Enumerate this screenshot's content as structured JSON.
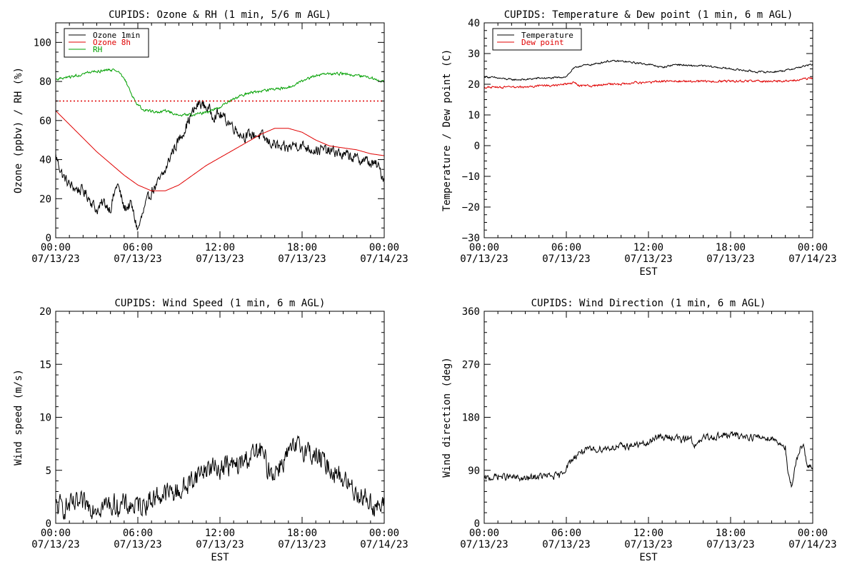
{
  "chart_data": [
    {
      "id": "ozone-rh",
      "type": "line",
      "title": "CUPIDS: Ozone & RH (1 min, 5/6 m AGL)",
      "xlabel": "",
      "ylabel": "Ozone (ppbv) / RH (%)",
      "x_unit": "hours since 07/13/23 00:00 EST",
      "xlim": [
        0,
        24
      ],
      "ylim": [
        0,
        110
      ],
      "x_ticks": [
        0,
        6,
        12,
        18,
        24
      ],
      "x_tick_labels": [
        [
          "00:00",
          "07/13/23"
        ],
        [
          "06:00",
          "07/13/23"
        ],
        [
          "12:00",
          "07/13/23"
        ],
        [
          "18:00",
          "07/13/23"
        ],
        [
          "00:00",
          "07/14/23"
        ]
      ],
      "y_ticks": [
        0,
        20,
        40,
        60,
        80,
        100
      ],
      "y_tick_labels": [
        "0",
        "20",
        "40",
        "60",
        "80",
        "100"
      ],
      "y_minor_step": 5,
      "legend_position": "top-left",
      "reference_lines": [
        {
          "y": 70,
          "color": "#e00000",
          "style": "dotted"
        }
      ],
      "series": [
        {
          "name": "Ozone 1min",
          "color": "#000000",
          "noise": 2.5,
          "x": [
            0,
            0.5,
            1,
            1.5,
            2,
            2.5,
            3,
            3.5,
            4,
            4.5,
            5,
            5.5,
            6,
            6.5,
            7,
            7.5,
            8,
            8.5,
            9,
            9.5,
            10,
            10.5,
            11,
            11.5,
            12,
            12.5,
            13,
            13.5,
            14,
            14.5,
            15,
            15.5,
            16,
            16.5,
            17,
            17.5,
            18,
            18.5,
            19,
            19.5,
            20,
            20.5,
            21,
            21.5,
            22,
            22.5,
            23,
            23.5,
            24
          ],
          "y": [
            42,
            32,
            27,
            25,
            24,
            20,
            14,
            18,
            15,
            28,
            15,
            17,
            4,
            15,
            24,
            28,
            34,
            44,
            50,
            57,
            64,
            69,
            67,
            63,
            63,
            60,
            57,
            53,
            52,
            53,
            52,
            49,
            48,
            45,
            46,
            48,
            47,
            46,
            45,
            45,
            44,
            44,
            42,
            42,
            40,
            40,
            38,
            37,
            30
          ]
        },
        {
          "name": "Ozone 8h",
          "color": "#e00000",
          "noise": 0,
          "x": [
            0,
            1,
            2,
            3,
            4,
            5,
            6,
            7,
            8,
            9,
            10,
            11,
            12,
            13,
            14,
            15,
            16,
            17,
            18,
            19,
            20,
            21,
            22,
            23,
            24
          ],
          "y": [
            65,
            58,
            51,
            44,
            38,
            32,
            27,
            24,
            24,
            27,
            32,
            37,
            41,
            45,
            49,
            53,
            56,
            56,
            54,
            50,
            47,
            46,
            45,
            43,
            42
          ]
        },
        {
          "name": "RH",
          "color": "#00a000",
          "noise": 0.6,
          "x": [
            0,
            1,
            2,
            3,
            4,
            4.5,
            5,
            5.5,
            6,
            6.5,
            7,
            7.5,
            8,
            9,
            10,
            11,
            12,
            13,
            14,
            15,
            16,
            17,
            18,
            19,
            20,
            21,
            22,
            23,
            24
          ],
          "y": [
            81,
            82,
            84,
            85,
            86,
            85,
            82,
            74,
            68,
            65,
            65,
            64,
            65,
            63,
            63,
            64,
            67,
            71,
            74,
            75,
            76,
            77,
            80,
            83,
            84,
            84,
            83,
            82,
            80
          ]
        }
      ]
    },
    {
      "id": "temp-dew",
      "type": "line",
      "title": "CUPIDS: Temperature & Dew point (1 min, 6 m AGL)",
      "xlabel": "EST",
      "ylabel": "Temperature / Dew point (C)",
      "x_unit": "hours since 07/13/23 00:00 EST",
      "xlim": [
        0,
        24
      ],
      "ylim": [
        -30,
        40
      ],
      "x_ticks": [
        0,
        6,
        12,
        18,
        24
      ],
      "x_tick_labels": [
        [
          "00:00",
          "07/13/23"
        ],
        [
          "06:00",
          "07/13/23"
        ],
        [
          "12:00",
          "07/13/23"
        ],
        [
          "18:00",
          "07/13/23"
        ],
        [
          "00:00",
          "07/14/23"
        ]
      ],
      "y_ticks": [
        -30,
        -20,
        -10,
        0,
        10,
        20,
        30,
        40
      ],
      "y_tick_labels": [
        "−30",
        "−20",
        "−10",
        "0",
        "10",
        "20",
        "30",
        "40"
      ],
      "y_minor_step": 2.5,
      "legend_position": "top-left",
      "reference_lines": [],
      "series": [
        {
          "name": "Temperature",
          "color": "#000000",
          "noise": 0.25,
          "x": [
            0,
            1,
            2,
            3,
            4,
            5,
            6,
            6.5,
            7,
            8,
            9,
            10,
            11,
            12,
            13,
            14,
            15,
            16,
            17,
            18,
            19,
            20,
            21,
            22,
            23,
            24
          ],
          "y": [
            22.5,
            22,
            21.5,
            21.5,
            22,
            22,
            22.5,
            25,
            26,
            26.5,
            27.5,
            27.5,
            27,
            26.5,
            25.5,
            26.5,
            26,
            26,
            25.5,
            25,
            24.5,
            24,
            24,
            24.5,
            25.5,
            26.5
          ]
        },
        {
          "name": "Dew point",
          "color": "#e00000",
          "noise": 0.3,
          "x": [
            0,
            1,
            2,
            3,
            4,
            5,
            6,
            6.5,
            7,
            8,
            9,
            10,
            11,
            12,
            13,
            14,
            15,
            16,
            17,
            18,
            19,
            20,
            21,
            22,
            23,
            24
          ],
          "y": [
            19,
            19,
            19,
            19,
            19.5,
            19.5,
            20,
            20.5,
            19.5,
            19.5,
            20,
            20,
            20.5,
            20.5,
            21,
            21,
            21,
            21,
            21,
            21,
            21,
            21,
            21,
            21,
            21.5,
            22
          ]
        }
      ]
    },
    {
      "id": "wind-speed",
      "type": "line",
      "title": "CUPIDS: Wind Speed (1 min, 6 m AGL)",
      "xlabel": "EST",
      "ylabel": "Wind speed (m/s)",
      "x_unit": "hours since 07/13/23 00:00 EST",
      "xlim": [
        0,
        24
      ],
      "ylim": [
        0,
        20
      ],
      "x_ticks": [
        0,
        6,
        12,
        18,
        24
      ],
      "x_tick_labels": [
        [
          "00:00",
          "07/13/23"
        ],
        [
          "06:00",
          "07/13/23"
        ],
        [
          "12:00",
          "07/13/23"
        ],
        [
          "18:00",
          "07/13/23"
        ],
        [
          "00:00",
          "07/14/23"
        ]
      ],
      "y_ticks": [
        0,
        5,
        10,
        15,
        20
      ],
      "y_tick_labels": [
        "0",
        "5",
        "10",
        "15",
        "20"
      ],
      "y_minor_step": 1,
      "legend_position": "none",
      "reference_lines": [],
      "series": [
        {
          "name": "",
          "color": "#000000",
          "noise": 0.9,
          "x": [
            0,
            1,
            2,
            3,
            4,
            5,
            6,
            7,
            7.5,
            8,
            8.5,
            9,
            9.5,
            10,
            10.5,
            11,
            11.5,
            12,
            12.5,
            13,
            13.5,
            14,
            14.5,
            15,
            15.5,
            16,
            16.5,
            17,
            17.5,
            18,
            18.5,
            19,
            19.5,
            20,
            20.5,
            21,
            21.5,
            22,
            22.5,
            23,
            23.5,
            24
          ],
          "y": [
            1.5,
            1.6,
            1.7,
            1.7,
            1.7,
            1.7,
            1.6,
            2.3,
            2.6,
            2.8,
            2.9,
            3.0,
            3.4,
            4.2,
            4.8,
            5.2,
            5.2,
            5.3,
            5.5,
            5.3,
            5.5,
            6.2,
            6.5,
            6.8,
            5.2,
            4.8,
            5.8,
            6.5,
            7.0,
            7.2,
            6.8,
            6.3,
            5.8,
            5.3,
            4.8,
            4.2,
            3.5,
            3.0,
            2.5,
            2.0,
            1.5,
            1.5
          ]
        }
      ]
    },
    {
      "id": "wind-dir",
      "type": "line",
      "title": "CUPIDS: Wind Direction (1 min, 6 m AGL)",
      "xlabel": "EST",
      "ylabel": "Wind direction (deg)",
      "x_unit": "hours since 07/13/23 00:00 EST",
      "xlim": [
        0,
        24
      ],
      "ylim": [
        0,
        360
      ],
      "x_ticks": [
        0,
        6,
        12,
        18,
        24
      ],
      "x_tick_labels": [
        [
          "00:00",
          "07/13/23"
        ],
        [
          "06:00",
          "07/13/23"
        ],
        [
          "12:00",
          "07/13/23"
        ],
        [
          "18:00",
          "07/13/23"
        ],
        [
          "00:00",
          "07/14/23"
        ]
      ],
      "y_ticks": [
        0,
        90,
        180,
        270,
        360
      ],
      "y_tick_labels": [
        "0",
        "90",
        "180",
        "270",
        "360"
      ],
      "y_minor_step": 18,
      "legend_position": "none",
      "reference_lines": [],
      "series": [
        {
          "name": "",
          "color": "#000000",
          "noise": 5,
          "x": [
            0,
            1,
            2,
            3,
            4,
            5,
            5.5,
            6,
            6.5,
            7,
            8,
            9,
            10,
            11,
            12,
            12.5,
            13,
            14,
            14.5,
            15,
            15.5,
            16,
            17,
            18,
            19,
            20,
            21,
            21.5,
            22,
            22.2,
            22.5,
            22.8,
            23,
            23.3,
            23.6,
            24
          ],
          "y": [
            75,
            80,
            78,
            75,
            80,
            80,
            80,
            95,
            110,
            122,
            125,
            128,
            130,
            133,
            135,
            148,
            145,
            147,
            140,
            147,
            130,
            145,
            148,
            150,
            148,
            146,
            145,
            138,
            130,
            80,
            60,
            105,
            125,
            135,
            100,
            90
          ]
        }
      ]
    }
  ]
}
